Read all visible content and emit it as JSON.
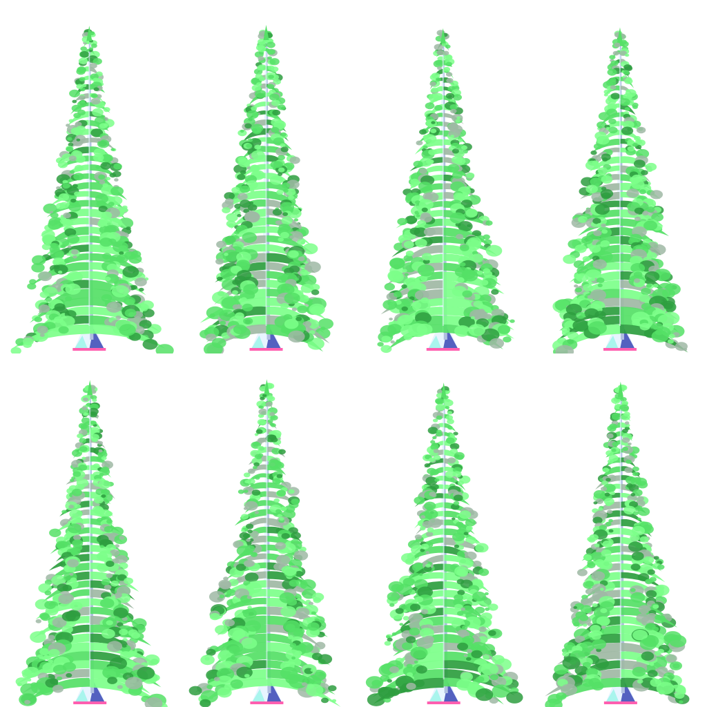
{
  "sheet": {
    "background": "#ffffff",
    "rows": 2,
    "columns": 4,
    "trees": [
      {
        "id": "tree-1"
      },
      {
        "id": "tree-2"
      },
      {
        "id": "tree-3"
      },
      {
        "id": "tree-4"
      },
      {
        "id": "tree-5"
      },
      {
        "id": "tree-6"
      },
      {
        "id": "tree-7"
      },
      {
        "id": "tree-8"
      }
    ]
  },
  "palette": {
    "foliage_light": "#7dff8a",
    "foliage_mid": "#55e066",
    "foliage_dark": "#2e9e3f",
    "foliage_gray": "#9fb8a4",
    "trunk_light": "#e8f4ff",
    "trunk_shadow": "#8a9acb",
    "base_blue": "#3a47b5",
    "base_pink": "#ff5fb0",
    "base_cyan": "#8ff5e6"
  }
}
